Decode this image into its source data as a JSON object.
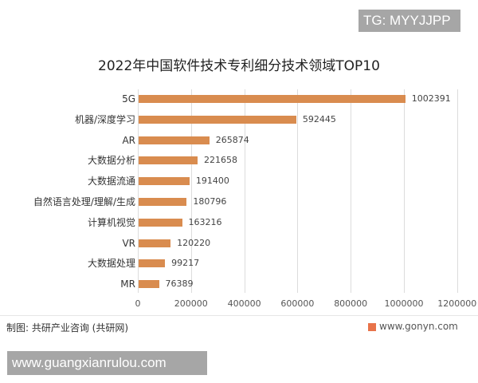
{
  "watermark_top": "TG: MYYJJPP",
  "watermark_bottom": "www.guangxianrulou.com",
  "footer": {
    "source": "制图: 共研产业咨询 (共研网)",
    "site": "www.gonyn.com"
  },
  "chart_data": {
    "type": "bar",
    "orientation": "horizontal",
    "title": "2022年中国软件技术专利细分技术领域TOP10",
    "xlabel": "",
    "ylabel": "",
    "xlim": [
      0,
      1200000
    ],
    "x_ticks": [
      "0",
      "200000",
      "400000",
      "600000",
      "800000",
      "1000000",
      "1200000"
    ],
    "grid": true,
    "legend": "none",
    "bar_color": "#d98c4f",
    "categories": [
      "5G",
      "机器/深度学习",
      "AR",
      "大数据分析",
      "大数据流通",
      "自然语言处理/理解/生成",
      "计算机视觉",
      "VR",
      "大数据处理",
      "MR"
    ],
    "values": [
      1002391,
      592445,
      265874,
      221658,
      191400,
      180796,
      163216,
      120220,
      99217,
      76389
    ],
    "labels": [
      "1002391",
      "592445",
      "265874",
      "221658",
      "191400",
      "180796",
      "163216",
      "120220",
      "99217",
      "76389"
    ]
  }
}
